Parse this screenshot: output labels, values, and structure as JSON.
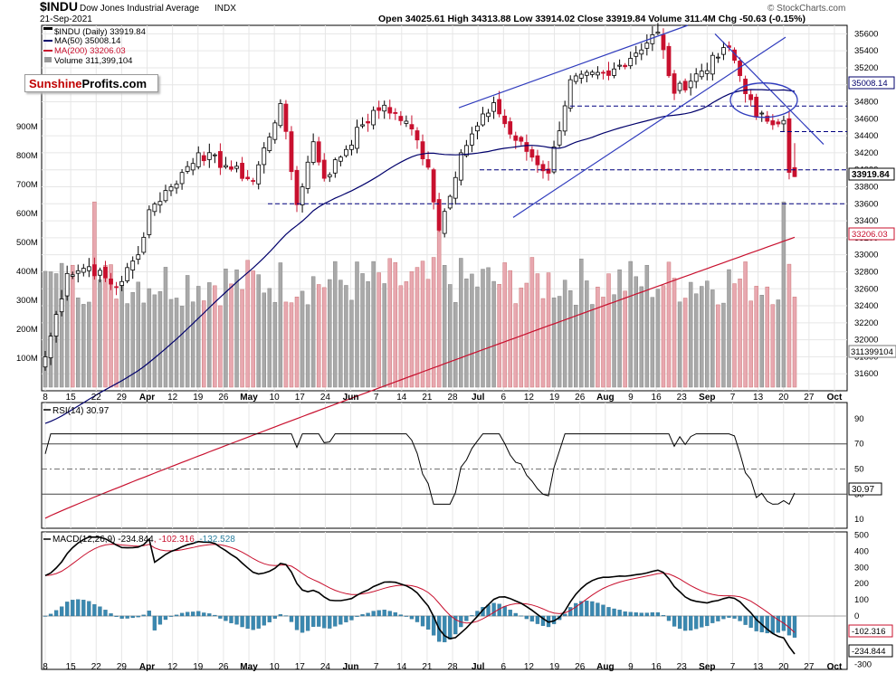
{
  "header": {
    "symbol": "$INDU",
    "name": "Dow Jones Industrial Average",
    "exchange": "INDX",
    "date": "21-Sep-2021",
    "ohlc": "Open 34025.61  High 34313.88  Low 33914.02  Close 33919.84  Volume 311.4M  Chg -50.63 (-0.15%)",
    "watermark": "© StockCharts.com",
    "legend_price": "$INDU (Daily) 33919.84",
    "legend_ma50": "MA(50) 35008.14",
    "legend_ma200": "MA(200) 33206.03",
    "legend_volume": "Volume 311,399,104"
  },
  "logo": {
    "part1": "Sunshine",
    "part2": "Profits",
    "part3": ".com"
  },
  "price_panel": {
    "y_ticks": [
      "35600",
      "35400",
      "35200",
      "35000",
      "34800",
      "34600",
      "34400",
      "34200",
      "34000",
      "33800",
      "33600",
      "33400",
      "33200",
      "33000",
      "32800",
      "32600",
      "32400",
      "32200",
      "32000",
      "31800",
      "31600"
    ],
    "labels": {
      "ma50": "35008.14",
      "close": "33919.84",
      "ma200": "33206.03",
      "volume": "311399104"
    },
    "volume_ticks": [
      "900M",
      "800M",
      "700M",
      "600M",
      "500M",
      "400M",
      "300M",
      "200M",
      "100M"
    ]
  },
  "x_axis": {
    "labels": [
      "8",
      "15",
      "22",
      "29",
      "Apr",
      "12",
      "19",
      "26",
      "May",
      "10",
      "17",
      "24",
      "Jun",
      "7",
      "14",
      "21",
      "28",
      "Jul",
      "6",
      "12",
      "19",
      "26",
      "Aug",
      "9",
      "16",
      "23",
      "Sep",
      "7",
      "13",
      "20",
      "27",
      "Oct"
    ]
  },
  "rsi_panel": {
    "legend": "RSI(14) 30.97",
    "y_ticks": [
      "90",
      "70",
      "50",
      "30",
      "10"
    ],
    "label": "30.97"
  },
  "macd_panel": {
    "legend_a": "MACD(12,26,9) -234.844",
    "legend_b": ", -102.316",
    "legend_c": ", -132.528",
    "y_ticks": [
      "500",
      "400",
      "300",
      "200",
      "100",
      "0",
      "-100",
      "-200",
      "-300"
    ],
    "label_signal": "-102.316",
    "label_macd": "-234.844"
  },
  "colors": {
    "up": "#000000",
    "down": "#c8102e",
    "ma50": "#00006b",
    "ma200": "#c8102e",
    "macd_hist": "#3a88b0",
    "trend": "#2f3bbd"
  },
  "chart_data": {
    "type": "candlestick",
    "period": "Daily",
    "x_range": [
      "2021-03-08",
      "2021-09-21"
    ],
    "ylim": [
      31400,
      35700
    ],
    "last": {
      "open": 34025.61,
      "high": 34313.88,
      "low": 33914.02,
      "close": 33919.84,
      "volume": 311399104
    },
    "ma50_last": 35008.14,
    "ma200_last": 33206.03,
    "anchors": [
      {
        "date": "2021-03-08",
        "close": 31800
      },
      {
        "date": "2021-03-12",
        "close": 32780
      },
      {
        "date": "2021-03-18",
        "close": 32860
      },
      {
        "date": "2021-03-25",
        "close": 32620
      },
      {
        "date": "2021-03-31",
        "close": 33000
      },
      {
        "date": "2021-04-05",
        "close": 33530
      },
      {
        "date": "2021-04-09",
        "close": 33800
      },
      {
        "date": "2021-04-16",
        "close": 34200
      },
      {
        "date": "2021-04-23",
        "close": 34050
      },
      {
        "date": "2021-04-30",
        "close": 33870
      },
      {
        "date": "2021-05-07",
        "close": 34780
      },
      {
        "date": "2021-05-12",
        "close": 33590
      },
      {
        "date": "2021-05-17",
        "close": 34330
      },
      {
        "date": "2021-05-19",
        "close": 33900
      },
      {
        "date": "2021-05-28",
        "close": 34530
      },
      {
        "date": "2021-06-04",
        "close": 34760
      },
      {
        "date": "2021-06-11",
        "close": 34480
      },
      {
        "date": "2021-06-16",
        "close": 34030
      },
      {
        "date": "2021-06-18",
        "close": 33290
      },
      {
        "date": "2021-06-24",
        "close": 34200
      },
      {
        "date": "2021-07-02",
        "close": 34790
      },
      {
        "date": "2021-07-08",
        "close": 34420
      },
      {
        "date": "2021-07-19",
        "close": 33960
      },
      {
        "date": "2021-07-23",
        "close": 35060
      },
      {
        "date": "2021-08-03",
        "close": 35110
      },
      {
        "date": "2021-08-16",
        "close": 35620
      },
      {
        "date": "2021-08-19",
        "close": 34900
      },
      {
        "date": "2021-09-02",
        "close": 35440
      },
      {
        "date": "2021-09-10",
        "close": 34620
      },
      {
        "date": "2021-09-17",
        "close": 34580
      },
      {
        "date": "2021-09-20",
        "close": 33970
      },
      {
        "date": "2021-09-21",
        "close": 33919.84
      }
    ],
    "support_lines": [
      33600,
      34000,
      34450,
      34750
    ],
    "rsi_last": 30.97,
    "rsi_levels": [
      70,
      50,
      30
    ],
    "macd": {
      "macd": -234.844,
      "signal": -102.316,
      "histogram": -132.528
    }
  }
}
